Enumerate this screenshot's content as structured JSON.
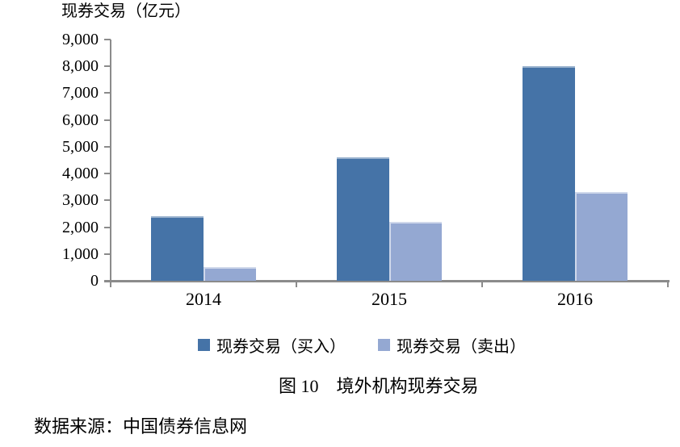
{
  "title": "现券交易（亿元）",
  "caption": "图 10　境外机构现券交易",
  "source": "数据来源：中国债券信息网",
  "colors": {
    "axis": "#8B8B8B",
    "text": "#000000",
    "buy": "#4573A7",
    "sell": "#94A8D2"
  },
  "chart_data": {
    "type": "bar",
    "title": "现券交易（亿元）",
    "categories": [
      "2014",
      "2015",
      "2016"
    ],
    "series": [
      {
        "name": "现券交易（买入）",
        "color": "#4573A7",
        "values": [
          2400,
          4600,
          8000
        ]
      },
      {
        "name": "现券交易（卖出）",
        "color": "#94A8D2",
        "values": [
          500,
          2200,
          3300
        ]
      }
    ],
    "ylabel_unit": "亿元",
    "ylim": [
      0,
      9000
    ],
    "ytick_step": 1000,
    "ytick_labels": [
      "0",
      "1,000",
      "2,000",
      "3,000",
      "4,000",
      "5,000",
      "6,000",
      "7,000",
      "8,000",
      "9,000"
    ],
    "grid": false,
    "legend_position": "bottom"
  }
}
